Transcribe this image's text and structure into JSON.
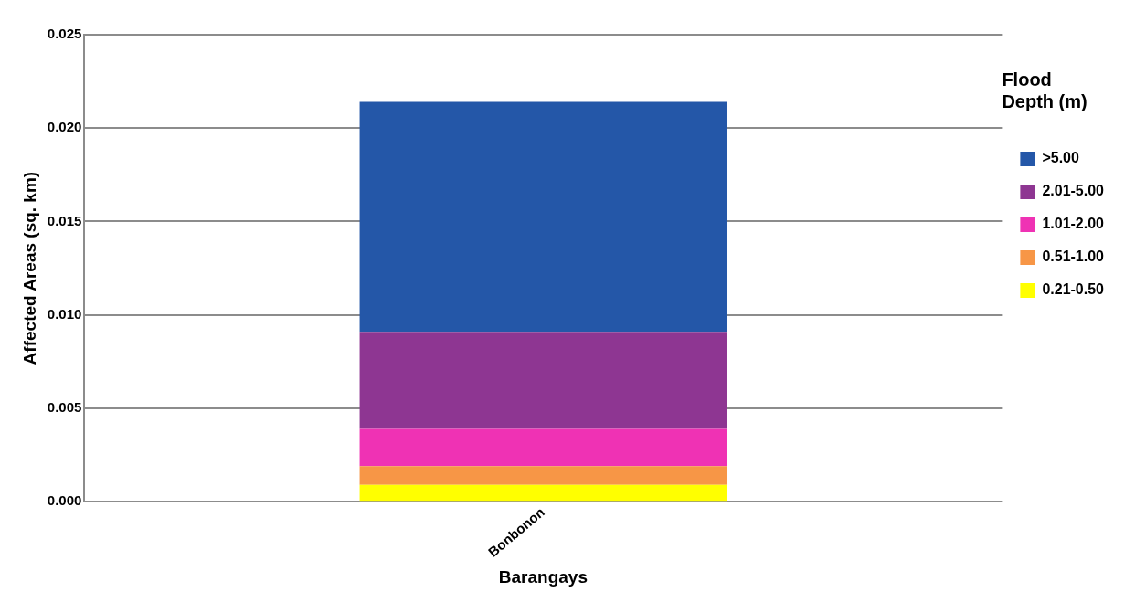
{
  "chart_data": {
    "type": "bar",
    "stacked": true,
    "xlabel": "Barangays",
    "ylabel": "Affected Areas (sq. km)",
    "legend_title": "Flood Depth (m)",
    "legend": "right",
    "grid": "y",
    "categories": [
      "Bonbonon"
    ],
    "series": [
      {
        "name": "0.21-0.50",
        "color": "#ffff00",
        "values": [
          0.0009
        ]
      },
      {
        "name": "0.51-1.00",
        "color": "#f79646",
        "values": [
          0.001
        ]
      },
      {
        "name": "1.01-2.00",
        "color": "#ef32b4",
        "values": [
          0.002
        ]
      },
      {
        "name": "2.01-5.00",
        "color": "#8e3692",
        "values": [
          0.0052
        ]
      },
      {
        "name": ">5.00",
        "color": "#2457a8",
        "values": [
          0.0123
        ]
      }
    ],
    "ylim": [
      0,
      0.025
    ],
    "yticks": [
      {
        "value": 0,
        "label": "0.000"
      },
      {
        "value": 0.005,
        "label": "0.005"
      },
      {
        "value": 0.01,
        "label": "0.010"
      },
      {
        "value": 0.015,
        "label": "0.015"
      },
      {
        "value": 0.02,
        "label": "0.020"
      },
      {
        "value": 0.025,
        "label": "0.025"
      }
    ]
  }
}
